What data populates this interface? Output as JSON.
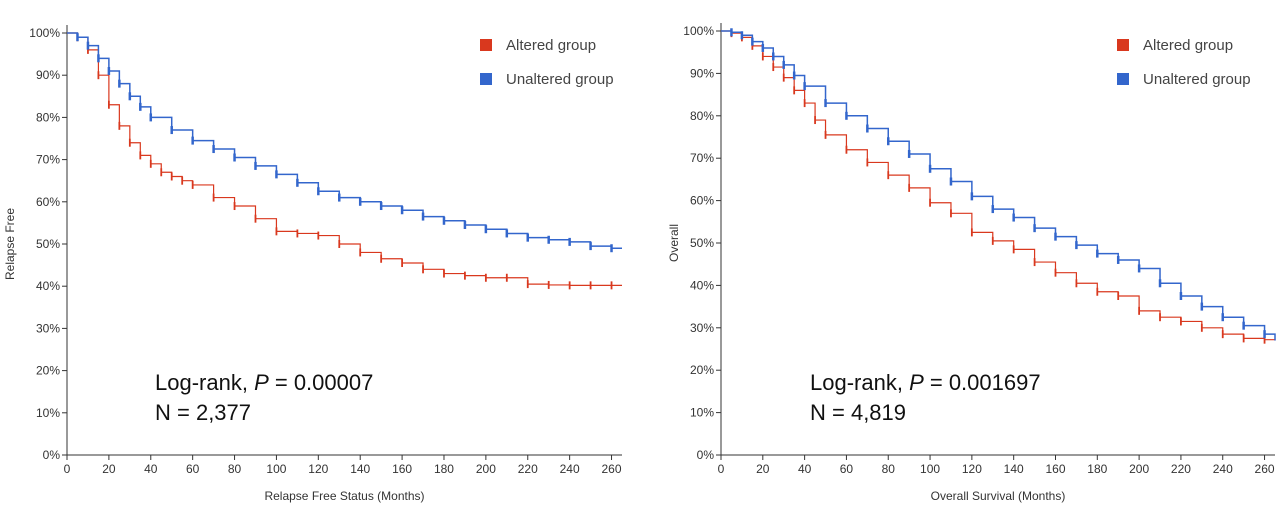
{
  "chart_data": [
    {
      "type": "line",
      "title": "",
      "xlabel": "Relapse Free Status (Months)",
      "ylabel": "Relapse Free",
      "xlim": [
        0,
        265
      ],
      "ylim": [
        0,
        100
      ],
      "x_ticks": [
        0,
        20,
        40,
        60,
        80,
        100,
        120,
        140,
        160,
        180,
        200,
        220,
        240,
        260
      ],
      "y_ticks": [
        "0%",
        "10%",
        "20%",
        "30%",
        "40%",
        "50%",
        "60%",
        "70%",
        "80%",
        "90%",
        "100%"
      ],
      "legend_placement": "top-right",
      "annotation": {
        "prefix": "Log-rank, ",
        "italic": "P",
        "suffix": " = 0.00007",
        "n_text": "N = 2,377"
      },
      "series": [
        {
          "name": "Altered group",
          "color": "#d9381e",
          "x": [
            0,
            5,
            10,
            15,
            20,
            25,
            30,
            35,
            40,
            45,
            50,
            55,
            60,
            70,
            80,
            90,
            100,
            110,
            120,
            130,
            140,
            150,
            160,
            170,
            180,
            190,
            200,
            210,
            220,
            230,
            240,
            250,
            260,
            265
          ],
          "y": [
            100,
            99,
            96,
            90,
            83,
            78,
            74,
            71,
            69,
            67,
            66,
            65,
            64,
            61,
            59,
            56,
            53,
            52.5,
            52,
            50,
            48,
            46.5,
            45.5,
            44,
            43,
            42.5,
            42,
            42,
            40.5,
            40.3,
            40.2,
            40.2,
            40.2,
            40.2
          ]
        },
        {
          "name": "Unaltered group",
          "color": "#3366cc",
          "x": [
            0,
            5,
            10,
            15,
            20,
            25,
            30,
            35,
            40,
            50,
            60,
            70,
            80,
            90,
            100,
            110,
            120,
            130,
            140,
            150,
            160,
            170,
            180,
            190,
            200,
            210,
            220,
            230,
            240,
            250,
            260,
            265
          ],
          "y": [
            100,
            99,
            97,
            94,
            91,
            88,
            85,
            82.5,
            80,
            77,
            74.5,
            72.5,
            70.5,
            68.5,
            66.5,
            64.5,
            62.5,
            61,
            60,
            59,
            58,
            56.5,
            55.5,
            54.5,
            53.5,
            52.5,
            51.5,
            51,
            50.5,
            49.5,
            49,
            49
          ]
        }
      ]
    },
    {
      "type": "line",
      "title": "",
      "xlabel": "Overall Survival (Months)",
      "ylabel": "Overall",
      "xlim": [
        0,
        265
      ],
      "ylim": [
        0,
        100
      ],
      "x_ticks": [
        0,
        20,
        40,
        60,
        80,
        100,
        120,
        140,
        160,
        180,
        200,
        220,
        240,
        260
      ],
      "y_ticks": [
        "0%",
        "10%",
        "20%",
        "30%",
        "40%",
        "50%",
        "60%",
        "70%",
        "80%",
        "90%",
        "100%"
      ],
      "legend_placement": "top-right",
      "annotation": {
        "prefix": "Log-rank, ",
        "italic": "P",
        "suffix": " = 0.001697",
        "n_text": "N = 4,819"
      },
      "series": [
        {
          "name": "Altered group",
          "color": "#d9381e",
          "x": [
            0,
            5,
            10,
            15,
            20,
            25,
            30,
            35,
            40,
            45,
            50,
            60,
            70,
            80,
            90,
            100,
            110,
            120,
            130,
            140,
            150,
            160,
            170,
            180,
            190,
            200,
            210,
            220,
            230,
            240,
            250,
            260,
            265
          ],
          "y": [
            100,
            99.5,
            98.5,
            96.5,
            94,
            91.5,
            89,
            86,
            83,
            79,
            75.5,
            72,
            69,
            66,
            63,
            59.5,
            57,
            52.5,
            50.5,
            48.5,
            45.5,
            43,
            40.5,
            38.5,
            37.5,
            34,
            32.5,
            31.5,
            30,
            28.5,
            27.5,
            27.2,
            27
          ]
        },
        {
          "name": "Unaltered group",
          "color": "#3366cc",
          "x": [
            0,
            5,
            10,
            15,
            20,
            25,
            30,
            35,
            40,
            50,
            60,
            70,
            80,
            90,
            100,
            110,
            120,
            130,
            140,
            150,
            160,
            170,
            180,
            190,
            200,
            210,
            220,
            230,
            240,
            250,
            260,
            265
          ],
          "y": [
            100,
            99.7,
            99,
            97.5,
            96,
            94,
            92,
            89.5,
            87,
            83,
            80,
            77,
            74,
            71,
            67.5,
            64.5,
            61,
            58,
            56,
            53.5,
            51.5,
            49.5,
            47.5,
            46,
            44,
            40.5,
            37.5,
            35,
            32.5,
            30.5,
            28.5,
            27
          ]
        }
      ]
    }
  ]
}
